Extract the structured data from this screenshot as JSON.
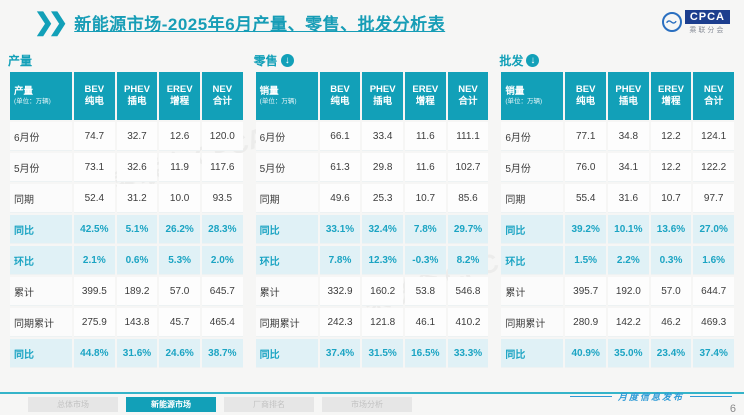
{
  "header": {
    "title": "新能源市场-2025年6月产量、零售、批发分析表",
    "logo": {
      "badge": "CPCA",
      "subtext": "乘联分会"
    }
  },
  "colors": {
    "accent": "#12a0b8",
    "highlight_bg": "#e0f1f6",
    "highlight_text": "#1ba4c3"
  },
  "unit_note": "(单位：万辆)",
  "column_headers": [
    {
      "line1": "BEV",
      "line2": "纯电"
    },
    {
      "line1": "PHEV",
      "line2": "插电"
    },
    {
      "line1": "EREV",
      "line2": "增程"
    },
    {
      "line1": "NEV",
      "line2": "合计"
    }
  ],
  "sections": [
    {
      "title": "产量",
      "has_arrow": false,
      "label_header": "产量",
      "rows": [
        {
          "label": "6月份",
          "highlight": false,
          "values": [
            "74.7",
            "32.7",
            "12.6",
            "120.0"
          ]
        },
        {
          "label": "5月份",
          "highlight": false,
          "values": [
            "73.1",
            "32.6",
            "11.9",
            "117.6"
          ]
        },
        {
          "label": "同期",
          "highlight": false,
          "values": [
            "52.4",
            "31.2",
            "10.0",
            "93.5"
          ]
        },
        {
          "label": "同比",
          "highlight": true,
          "values": [
            "42.5%",
            "5.1%",
            "26.2%",
            "28.3%"
          ]
        },
        {
          "label": "环比",
          "highlight": true,
          "values": [
            "2.1%",
            "0.6%",
            "5.3%",
            "2.0%"
          ]
        },
        {
          "label": "累计",
          "highlight": false,
          "values": [
            "399.5",
            "189.2",
            "57.0",
            "645.7"
          ]
        },
        {
          "label": "同期累计",
          "highlight": false,
          "values": [
            "275.9",
            "143.8",
            "45.7",
            "465.4"
          ]
        },
        {
          "label": "同比",
          "highlight": true,
          "values": [
            "44.8%",
            "31.6%",
            "24.6%",
            "38.7%"
          ]
        }
      ]
    },
    {
      "title": "零售",
      "has_arrow": true,
      "label_header": "销量",
      "rows": [
        {
          "label": "6月份",
          "highlight": false,
          "values": [
            "66.1",
            "33.4",
            "11.6",
            "111.1"
          ]
        },
        {
          "label": "5月份",
          "highlight": false,
          "values": [
            "61.3",
            "29.8",
            "11.6",
            "102.7"
          ]
        },
        {
          "label": "同期",
          "highlight": false,
          "values": [
            "49.6",
            "25.3",
            "10.7",
            "85.6"
          ]
        },
        {
          "label": "同比",
          "highlight": true,
          "values": [
            "33.1%",
            "32.4%",
            "7.8%",
            "29.7%"
          ]
        },
        {
          "label": "环比",
          "highlight": true,
          "values": [
            "7.8%",
            "12.3%",
            "-0.3%",
            "8.2%"
          ]
        },
        {
          "label": "累计",
          "highlight": false,
          "values": [
            "332.9",
            "160.2",
            "53.8",
            "546.8"
          ]
        },
        {
          "label": "同期累计",
          "highlight": false,
          "values": [
            "242.3",
            "121.8",
            "46.1",
            "410.2"
          ]
        },
        {
          "label": "同比",
          "highlight": true,
          "values": [
            "37.4%",
            "31.5%",
            "16.5%",
            "33.3%"
          ]
        }
      ]
    },
    {
      "title": "批发",
      "has_arrow": true,
      "label_header": "销量",
      "rows": [
        {
          "label": "6月份",
          "highlight": false,
          "values": [
            "77.1",
            "34.8",
            "12.2",
            "124.1"
          ]
        },
        {
          "label": "5月份",
          "highlight": false,
          "values": [
            "76.0",
            "34.1",
            "12.2",
            "122.2"
          ]
        },
        {
          "label": "同期",
          "highlight": false,
          "values": [
            "55.4",
            "31.6",
            "10.7",
            "97.7"
          ]
        },
        {
          "label": "同比",
          "highlight": true,
          "values": [
            "39.2%",
            "10.1%",
            "13.6%",
            "27.0%"
          ]
        },
        {
          "label": "环比",
          "highlight": true,
          "values": [
            "1.5%",
            "2.2%",
            "0.3%",
            "1.6%"
          ]
        },
        {
          "label": "累计",
          "highlight": false,
          "values": [
            "395.7",
            "192.0",
            "57.0",
            "644.7"
          ]
        },
        {
          "label": "同期累计",
          "highlight": false,
          "values": [
            "280.9",
            "142.2",
            "46.2",
            "469.3"
          ]
        },
        {
          "label": "同比",
          "highlight": true,
          "values": [
            "40.9%",
            "35.0%",
            "23.4%",
            "37.4%"
          ]
        }
      ]
    }
  ],
  "footer": {
    "tabs": [
      {
        "label": "总体市场",
        "active": false
      },
      {
        "label": "新能源市场",
        "active": true
      },
      {
        "label": "厂商排名",
        "active": false
      },
      {
        "label": "市场分析",
        "active": false
      }
    ],
    "right_label": "月度信息发布",
    "page_number": "6"
  }
}
